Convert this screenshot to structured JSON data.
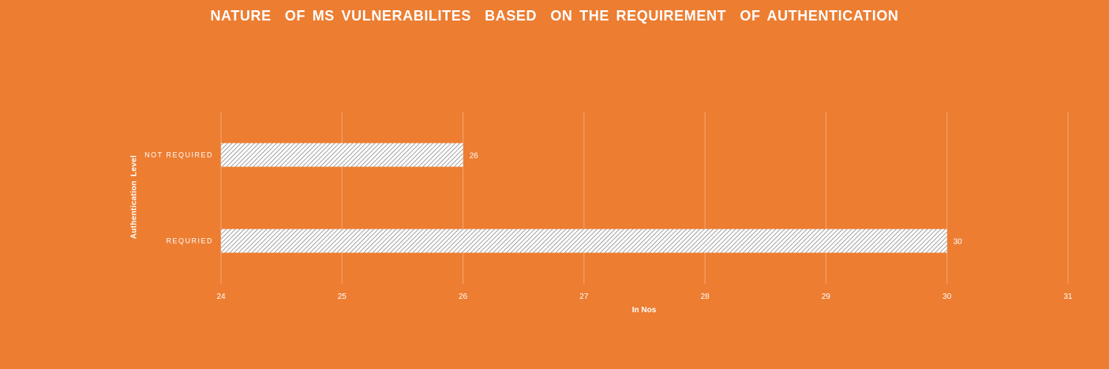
{
  "chart_data": {
    "type": "bar",
    "orientation": "horizontal",
    "title": "NATURE  OF MS VULNERABILITES  BASED  ON THE REQUIREMENT  OF AUTHENTICATION",
    "xlabel": "In Nos",
    "ylabel": "Authentication  Level",
    "categories": [
      "NOT REQUIRED",
      "REQURIED"
    ],
    "values": [
      26,
      30
    ],
    "data_labels": [
      "26",
      "30"
    ],
    "xlim": [
      24,
      31
    ],
    "xticks": [
      "24",
      "25",
      "26",
      "27",
      "28",
      "29",
      "30",
      "31"
    ],
    "grid": "vertical",
    "legend": "none",
    "bar_fill": "hatched",
    "colors": {
      "background": "#ED7D31",
      "bar_fill": "#ffffff",
      "bar_hatch": "#7a7a7a",
      "gridline": "#F3A87A",
      "text": "#ffffff"
    }
  }
}
